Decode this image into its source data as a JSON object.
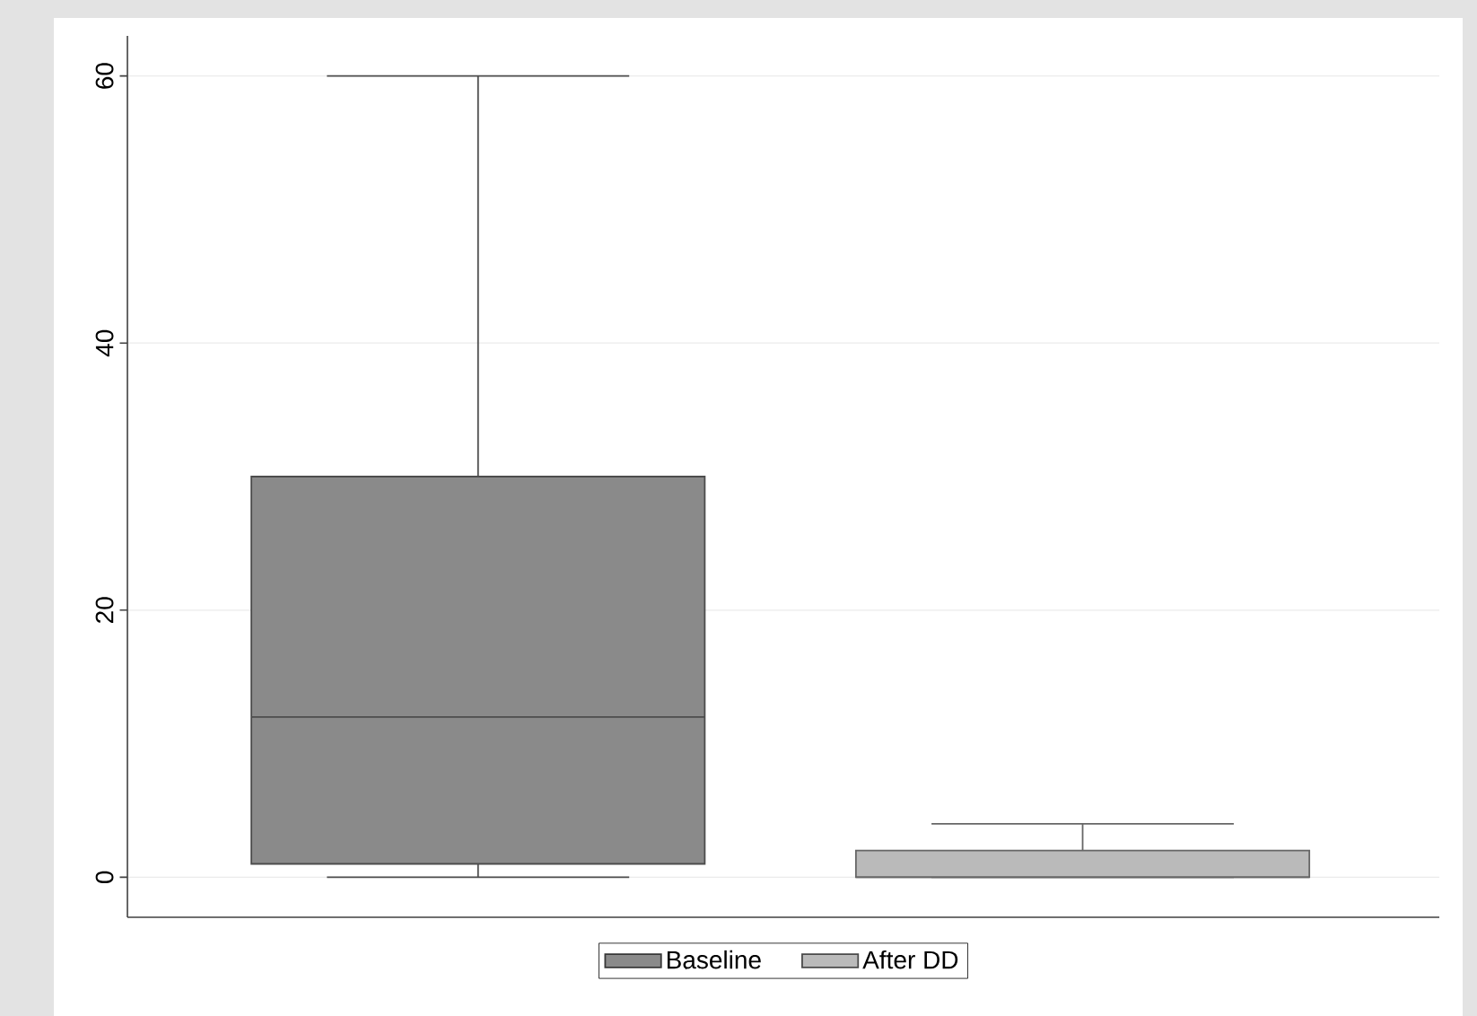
{
  "chart_data": {
    "type": "box",
    "categories": [
      null,
      null
    ],
    "series": [
      {
        "name": "Baseline",
        "color": "#8a8a8a",
        "boxes": [
          {
            "low": 0,
            "q1": 1,
            "median": 12,
            "q3": 30,
            "high": 60
          },
          null
        ]
      },
      {
        "name": "After DD",
        "color": "#bababa",
        "boxes": [
          null,
          {
            "low": 0,
            "q1": 0,
            "median": 0,
            "q3": 2,
            "high": 4
          }
        ]
      }
    ],
    "ylim": [
      -3,
      63
    ],
    "yticks": [
      0,
      20,
      40,
      60
    ],
    "grid": "y",
    "legend": "bottom"
  }
}
